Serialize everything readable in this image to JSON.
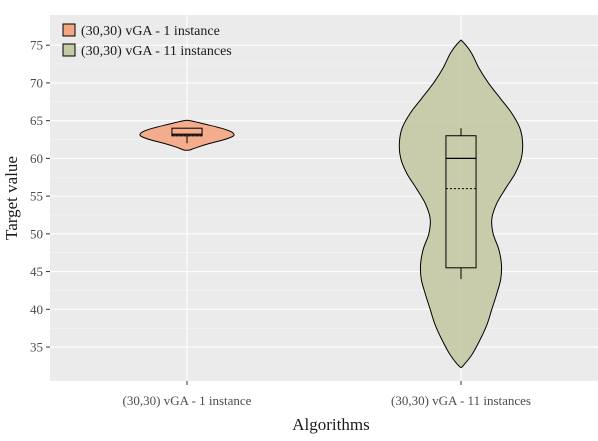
{
  "chart_data": {
    "type": "violin",
    "categories": [
      "(30,30) vGA - 1 instance",
      "(30,30) vGA - 11 instances"
    ],
    "xlabel": "Algorithms",
    "ylabel": "Target value",
    "ylim": [
      30.5,
      79
    ],
    "yticks": [
      35,
      40,
      45,
      50,
      55,
      60,
      65,
      70,
      75
    ],
    "grid": true,
    "legend": {
      "position": "top-left",
      "entries": [
        "(30,30) vGA - 1 instance",
        "(30,30) vGA - 11 instances"
      ]
    },
    "series": [
      {
        "name": "(30,30) vGA - 1 instance",
        "color": "#f4a582",
        "box": {
          "min": 62,
          "q1": 63,
          "median": 63.2,
          "mean": 63,
          "q3": 64,
          "max": 64
        },
        "density": [
          [
            61.1,
            0.04
          ],
          [
            61.5,
            0.16
          ],
          [
            62.0,
            0.34
          ],
          [
            62.5,
            0.55
          ],
          [
            63.0,
            0.68
          ],
          [
            63.5,
            0.65
          ],
          [
            64.0,
            0.5
          ],
          [
            64.5,
            0.28
          ],
          [
            65.0,
            0.04
          ]
        ]
      },
      {
        "name": "(30,30) vGA - 11 instances",
        "color": "#c5c9a4",
        "box": {
          "min": 44,
          "q1": 45.5,
          "median": 60,
          "mean": 56,
          "q3": 63,
          "max": 64
        },
        "density": [
          [
            32.4,
            0.02
          ],
          [
            34.0,
            0.16
          ],
          [
            36.0,
            0.28
          ],
          [
            38.0,
            0.38
          ],
          [
            40.0,
            0.45
          ],
          [
            42.0,
            0.52
          ],
          [
            44.0,
            0.58
          ],
          [
            46.0,
            0.59
          ],
          [
            48.0,
            0.55
          ],
          [
            50.0,
            0.47
          ],
          [
            52.0,
            0.45
          ],
          [
            54.0,
            0.52
          ],
          [
            56.0,
            0.65
          ],
          [
            58.0,
            0.79
          ],
          [
            60.0,
            0.88
          ],
          [
            62.0,
            0.9
          ],
          [
            64.0,
            0.86
          ],
          [
            66.0,
            0.74
          ],
          [
            68.0,
            0.57
          ],
          [
            70.0,
            0.4
          ],
          [
            72.0,
            0.26
          ],
          [
            74.0,
            0.15
          ],
          [
            75.5,
            0.02
          ]
        ]
      }
    ]
  }
}
